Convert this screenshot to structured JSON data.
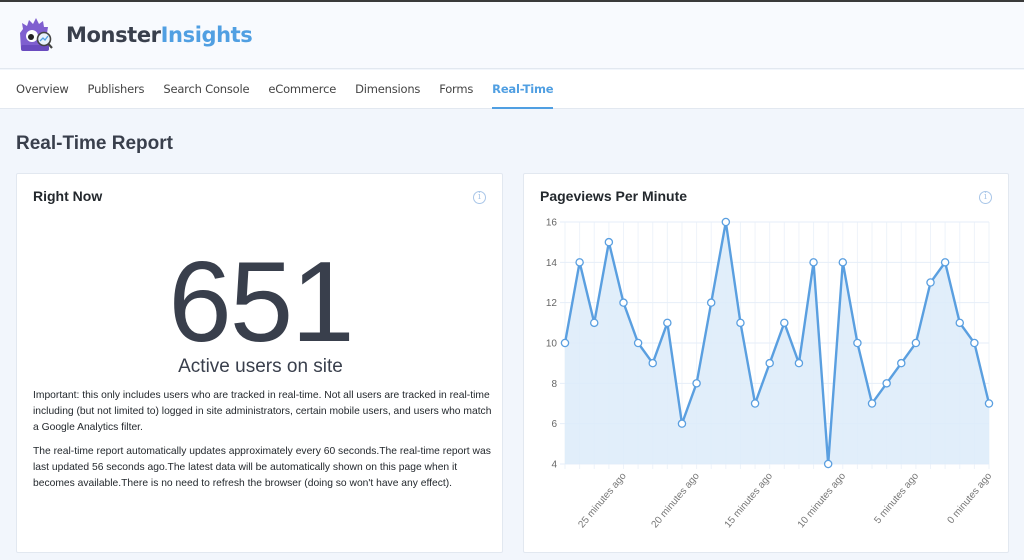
{
  "header": {
    "brand_part1": "Monster",
    "brand_part2": "Insights",
    "logo_icon": "monster-magnifier-logo"
  },
  "nav": {
    "tabs": [
      {
        "label": "Overview",
        "active": false
      },
      {
        "label": "Publishers",
        "active": false
      },
      {
        "label": "Search Console",
        "active": false
      },
      {
        "label": "eCommerce",
        "active": false
      },
      {
        "label": "Dimensions",
        "active": false
      },
      {
        "label": "Forms",
        "active": false
      },
      {
        "label": "Real-Time",
        "active": true
      }
    ]
  },
  "page": {
    "title": "Real-Time Report"
  },
  "right_now": {
    "title": "Right Now",
    "info_icon": "info-icon",
    "active_users": "651",
    "active_label": "Active users on site",
    "note1": "Important: this only includes users who are tracked in real-time. Not all users are tracked in real-time including (but not limited to) logged in site administrators, certain mobile users, and users who match a Google Analytics filter.",
    "note2": "The real-time report automatically updates approximately every 60 seconds.The real-time report was last updated 56 seconds ago.The latest data will be automatically shown on this page when it becomes available.There is no need to refresh the browser (doing so won't have any effect)."
  },
  "pageviews": {
    "title": "Pageviews Per Minute",
    "info_icon": "info-icon"
  },
  "colors": {
    "accent": "#509fe2",
    "line": "#5a9fe0",
    "area": "#dcebf9",
    "grid": "#e6eef8",
    "text": "#393f4c",
    "page_bg": "#f2f6fc"
  },
  "chart_data": {
    "type": "area",
    "title": "Pageviews Per Minute",
    "xlabel": "",
    "ylabel": "",
    "ylim": [
      4,
      16
    ],
    "yticks": [
      4,
      6,
      8,
      10,
      12,
      14,
      16
    ],
    "grid": true,
    "legend": null,
    "x_tick_labels": [
      {
        "index": 4,
        "label": "25 minutes ago"
      },
      {
        "index": 9,
        "label": "20 minutes ago"
      },
      {
        "index": 14,
        "label": "15 minutes ago"
      },
      {
        "index": 19,
        "label": "10 minutes ago"
      },
      {
        "index": 24,
        "label": "5 minutes ago"
      },
      {
        "index": 29,
        "label": "0 minutes ago"
      }
    ],
    "x": [
      29,
      28,
      27,
      26,
      25,
      24,
      23,
      22,
      21,
      20,
      19,
      18,
      17,
      16,
      15,
      14,
      13,
      12,
      11,
      10,
      9,
      8,
      7,
      6,
      5,
      4,
      3,
      2,
      1,
      0
    ],
    "values": [
      10,
      14,
      11,
      15,
      12,
      10,
      9,
      11,
      6,
      8,
      12,
      16,
      11,
      7,
      9,
      11,
      9,
      14,
      4,
      14,
      10,
      7,
      8,
      9,
      10,
      13,
      14,
      11,
      10,
      7
    ]
  }
}
